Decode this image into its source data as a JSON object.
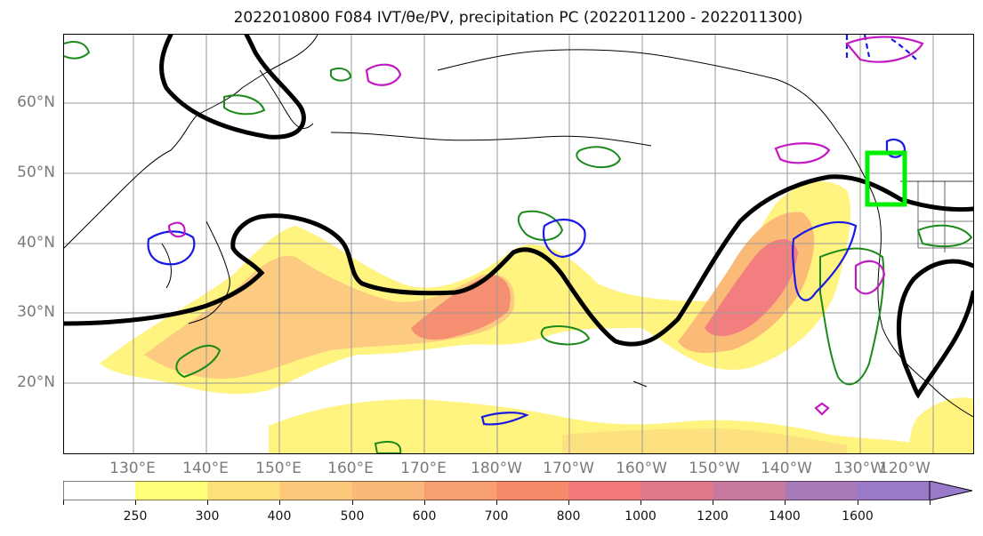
{
  "title": "2022010800 F084 IVT/θe/PV, precipitation PC (2022011200 - 2022011300)",
  "map": {
    "lat_labels": [
      "60°N",
      "50°N",
      "40°N",
      "30°N",
      "20°N"
    ],
    "lon_labels": [
      "130°E",
      "140°E",
      "150°E",
      "160°E",
      "170°E",
      "180°W",
      "170°W",
      "160°W",
      "150°W",
      "140°W",
      "130°W",
      "120°W"
    ],
    "colors": {
      "ivt_fill_low": "#fff47a",
      "ivt_fill_mid": "#fbb870",
      "ivt_fill_high": "#f4796c",
      "theta_contour": "#000000",
      "precip_contour": "#1b8a1b",
      "pv_contour_blue": "#1a1ae6",
      "pv_contour_magenta": "#c21ac2",
      "target_box": "#00ee00"
    }
  },
  "colorbar": {
    "tick_labels": [
      "250",
      "300",
      "400",
      "500",
      "600",
      "700",
      "800",
      "1000",
      "1200",
      "1400",
      "1600"
    ],
    "bin_colors": [
      "#ffffff",
      "#ffff7a",
      "#fde07a",
      "#fcc87a",
      "#fbb87a",
      "#f9a072",
      "#f68a6a",
      "#f2787a",
      "#e07a8a",
      "#c87a9e",
      "#a87ab8",
      "#9a7ac8"
    ]
  }
}
